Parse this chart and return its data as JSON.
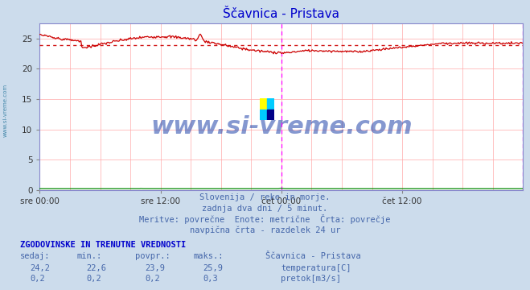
{
  "title": "Ščavnica - Pristava",
  "title_color": "#0000cc",
  "bg_color": "#ccdcec",
  "plot_bg_color": "#ffffff",
  "grid_color": "#ffaaaa",
  "border_color": "#8888cc",
  "xlabel_ticks": [
    "sre 00:00",
    "sre 12:00",
    "čet 00:00",
    "čet 12:00"
  ],
  "ylabel_ticks": [
    0,
    5,
    10,
    15,
    20,
    25
  ],
  "ylim": [
    0,
    27.5
  ],
  "temp_avg": 23.9,
  "temp_color": "#cc0000",
  "flow_color": "#008800",
  "avg_line_color": "#cc0000",
  "watermark": "www.si-vreme.com",
  "watermark_color": "#2244aa",
  "subtitle_lines": [
    "Slovenija / reke in morje.",
    "zadnja dva dni / 5 minut.",
    "Meritve: povrečne  Enote: metrične  Črta: povrečje",
    "navpična črta - razdelek 24 ur"
  ],
  "subtitle_color": "#4466aa",
  "table_header": "ZGODOVINSKE IN TRENUTNE VREDNOSTI",
  "table_color": "#0000cc",
  "col_headers": [
    "sedaj:",
    "min.:",
    "povpr.:",
    "maks.:"
  ],
  "station_name": "Ščavnica - Pristava",
  "legend_items": [
    {
      "label": "temperatura[C]",
      "color": "#cc0000"
    },
    {
      "label": "pretok[m3/s]",
      "color": "#008800"
    }
  ],
  "row1_vals": [
    "24,2",
    "22,6",
    "23,9",
    "25,9"
  ],
  "row2_vals": [
    "0,2",
    "0,2",
    "0,2",
    "0,3"
  ],
  "vline_color": "#ff00ff",
  "sidebar_text": "www.si-vreme.com",
  "sidebar_color": "#4488aa",
  "logo_colors": [
    "#ffff00",
    "#00ccff",
    "#00ccff",
    "#000088"
  ]
}
